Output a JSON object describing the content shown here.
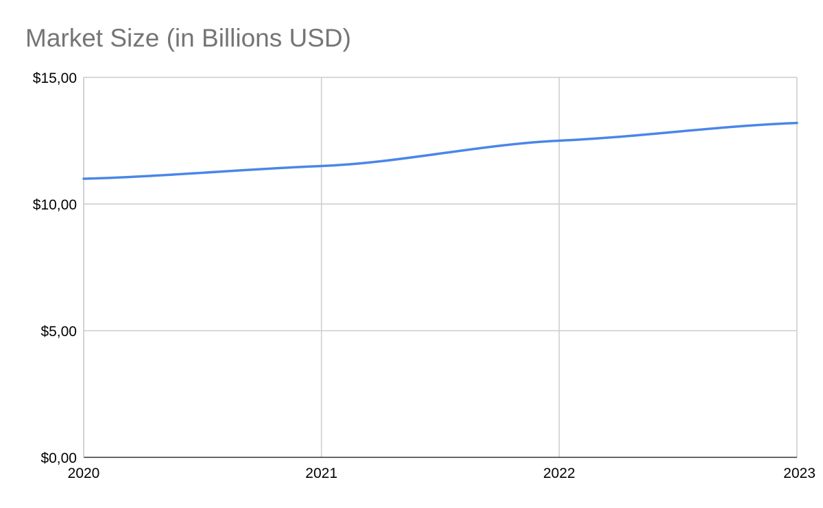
{
  "chart_data": {
    "type": "line",
    "title": "Market Size (in Billions USD)",
    "xlabel": "",
    "ylabel": "",
    "categories": [
      "2020",
      "2021",
      "2022",
      "2023"
    ],
    "series": [
      {
        "values": [
          11.0,
          11.5,
          12.5,
          13.2
        ],
        "color": "#4a86e8"
      }
    ],
    "ylim": [
      0,
      15
    ],
    "yticks": [
      0,
      5,
      10,
      15
    ],
    "ytick_labels": [
      "$0,00",
      "$5,00",
      "$10,00",
      "$15,00"
    ],
    "grid": true,
    "legend": "none"
  }
}
